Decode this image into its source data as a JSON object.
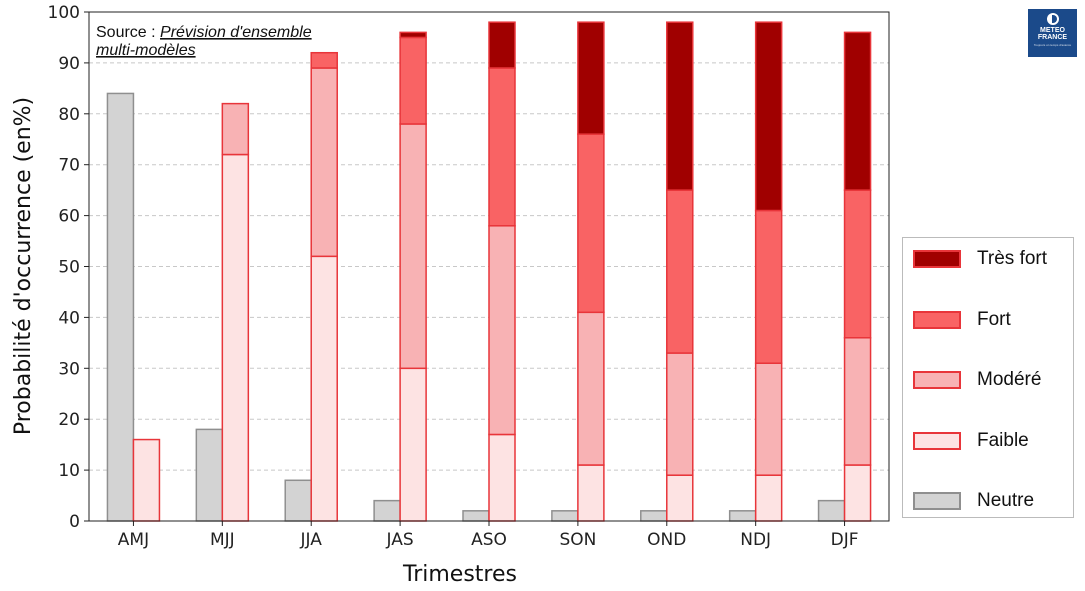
{
  "source": {
    "prefix": "Source : ",
    "line1": " Prévision d'ensemble",
    "line2": "multi-modèles"
  },
  "logo": {
    "line1": "METEO",
    "line2": "FRANCE",
    "tagline1": "Toujours un temps d'avance"
  },
  "colors": {
    "neutre_fill": "#d3d3d3",
    "neutre_edge": "#8f8f8f",
    "faible_fill": "#fde3e3",
    "faible_edge": "#e8353a",
    "modere_fill": "#f8b2b4",
    "modere_edge": "#e8353a",
    "fort_fill": "#f96364",
    "fort_edge": "#e8353a",
    "tres_fort_fill": "#a00000",
    "tres_fort_edge": "#e8353a"
  },
  "legend": {
    "items": [
      {
        "label": "Très fort",
        "fill": "#a00000",
        "edge": "#e8353a"
      },
      {
        "label": "Fort",
        "fill": "#f96364",
        "edge": "#e8353a"
      },
      {
        "label": "Modéré",
        "fill": "#f8b2b4",
        "edge": "#e8353a"
      },
      {
        "label": "Faible",
        "fill": "#fde3e3",
        "edge": "#e8353a"
      },
      {
        "label": "Neutre",
        "fill": "#d3d3d3",
        "edge": "#8f8f8f"
      }
    ]
  },
  "chart_data": {
    "type": "bar",
    "stacked": true,
    "title": "",
    "xlabel": "Trimestres",
    "ylabel": "Probabilité d'occurrence (en%)",
    "ylim": [
      0,
      100
    ],
    "yticks": [
      0,
      10,
      20,
      30,
      40,
      50,
      60,
      70,
      80,
      90,
      100
    ],
    "grid": "horizontal dashed",
    "legend_position": "right",
    "categories": [
      "AMJ",
      "MJJ",
      "JJA",
      "JAS",
      "ASO",
      "SON",
      "OND",
      "NDJ",
      "DJF"
    ],
    "series": [
      {
        "name": "Neutre",
        "values": [
          84,
          18,
          8,
          4,
          2,
          2,
          2,
          2,
          4
        ]
      },
      {
        "name": "Faible",
        "values": [
          16,
          72,
          52,
          30,
          17,
          11,
          9,
          9,
          11
        ]
      },
      {
        "name": "Modéré",
        "values": [
          0,
          10,
          37,
          48,
          41,
          30,
          24,
          22,
          25
        ]
      },
      {
        "name": "Fort",
        "values": [
          0,
          0,
          3,
          17,
          31,
          35,
          32,
          30,
          29
        ]
      },
      {
        "name": "Très fort",
        "values": [
          0,
          0,
          0,
          1,
          9,
          22,
          33,
          37,
          31
        ]
      }
    ]
  }
}
